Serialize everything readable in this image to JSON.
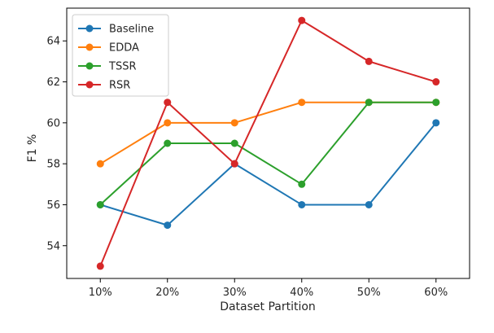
{
  "chart_data": {
    "type": "line",
    "title": "",
    "xlabel": "Dataset Partition",
    "ylabel": "F1 %",
    "categories": [
      "10%",
      "20%",
      "30%",
      "40%",
      "50%",
      "60%"
    ],
    "ylim": [
      52.4,
      65.6
    ],
    "yticks": [
      54,
      56,
      58,
      60,
      62,
      64
    ],
    "grid": false,
    "legend_position": "top-left",
    "series": [
      {
        "name": "Baseline",
        "color": "#1f77b4",
        "values": [
          56,
          55,
          58,
          56,
          56,
          60
        ]
      },
      {
        "name": "EDDA",
        "color": "#ff7f0e",
        "values": [
          58,
          60,
          60,
          61,
          61,
          61
        ]
      },
      {
        "name": "TSSR",
        "color": "#2ca02c",
        "values": [
          56,
          59,
          59,
          57,
          61,
          61
        ]
      },
      {
        "name": "RSR",
        "color": "#d62728",
        "values": [
          53,
          61,
          58,
          65,
          63,
          62
        ]
      }
    ]
  }
}
